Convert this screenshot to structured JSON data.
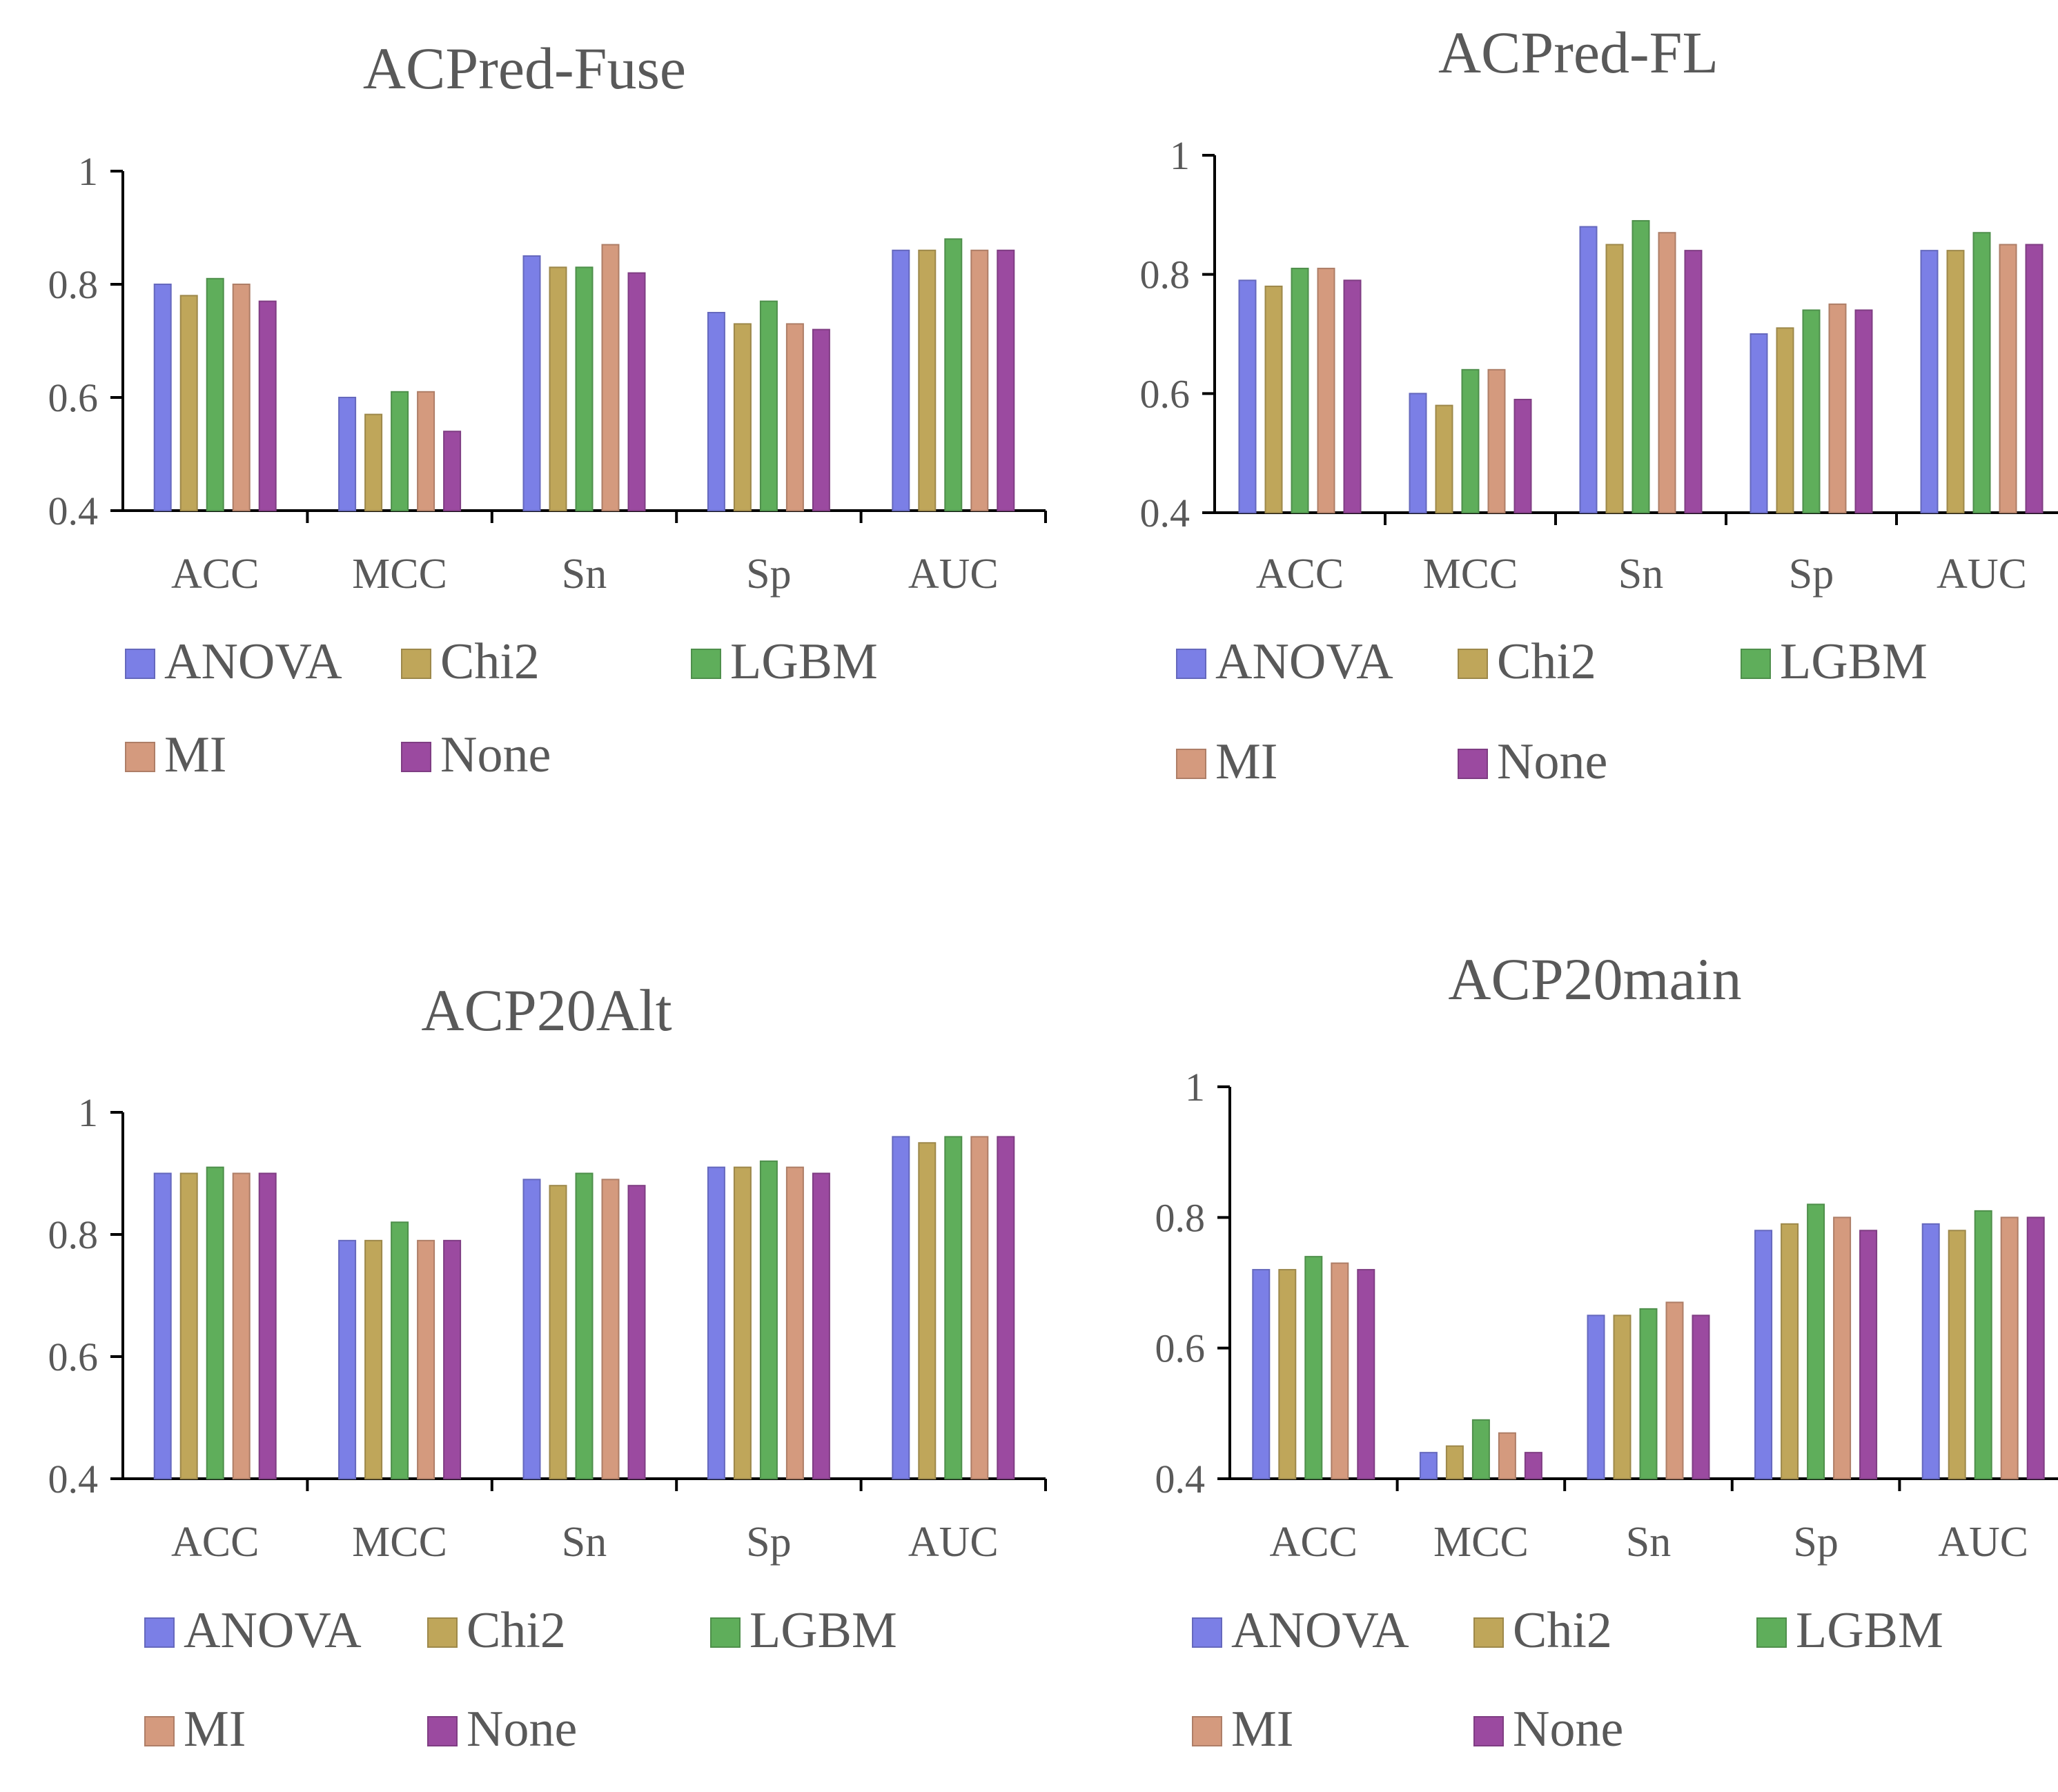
{
  "chart_data": [
    {
      "type": "bar",
      "title": "ACPred-Fuse",
      "categories": [
        "ACC",
        "MCC",
        "Sn",
        "Sp",
        "AUC"
      ],
      "ylim": [
        0.4,
        1
      ],
      "yticks": [
        "0.4",
        "0.6",
        "0.8",
        "1"
      ],
      "legend_position": "bottom",
      "series": [
        {
          "name": "ANOVA",
          "values": [
            0.8,
            0.6,
            0.85,
            0.75,
            0.86
          ]
        },
        {
          "name": "Chi2",
          "values": [
            0.78,
            0.57,
            0.83,
            0.73,
            0.86
          ]
        },
        {
          "name": "LGBM",
          "values": [
            0.81,
            0.61,
            0.83,
            0.77,
            0.88
          ]
        },
        {
          "name": "MI",
          "values": [
            0.8,
            0.61,
            0.87,
            0.73,
            0.86
          ]
        },
        {
          "name": "None",
          "values": [
            0.77,
            0.54,
            0.82,
            0.72,
            0.86
          ]
        }
      ]
    },
    {
      "type": "bar",
      "title": "ACPred-FL",
      "categories": [
        "ACC",
        "MCC",
        "Sn",
        "Sp",
        "AUC"
      ],
      "ylim": [
        0.4,
        1
      ],
      "yticks": [
        "0.4",
        "0.6",
        "0.8",
        "1"
      ],
      "legend_position": "bottom",
      "series": [
        {
          "name": "ANOVA",
          "values": [
            0.79,
            0.6,
            0.88,
            0.7,
            0.84
          ]
        },
        {
          "name": "Chi2",
          "values": [
            0.78,
            0.58,
            0.85,
            0.71,
            0.84
          ]
        },
        {
          "name": "LGBM",
          "values": [
            0.81,
            0.64,
            0.89,
            0.74,
            0.87
          ]
        },
        {
          "name": "MI",
          "values": [
            0.81,
            0.64,
            0.87,
            0.75,
            0.85
          ]
        },
        {
          "name": "None",
          "values": [
            0.79,
            0.59,
            0.84,
            0.74,
            0.85
          ]
        }
      ]
    },
    {
      "type": "bar",
      "title": "ACP20Alt",
      "categories": [
        "ACC",
        "MCC",
        "Sn",
        "Sp",
        "AUC"
      ],
      "ylim": [
        0.4,
        1
      ],
      "yticks": [
        "0.4",
        "0.6",
        "0.8",
        "1"
      ],
      "legend_position": "bottom",
      "series": [
        {
          "name": "ANOVA",
          "values": [
            0.9,
            0.79,
            0.89,
            0.91,
            0.96
          ]
        },
        {
          "name": "Chi2",
          "values": [
            0.9,
            0.79,
            0.88,
            0.91,
            0.95
          ]
        },
        {
          "name": "LGBM",
          "values": [
            0.91,
            0.82,
            0.9,
            0.92,
            0.96
          ]
        },
        {
          "name": "MI",
          "values": [
            0.9,
            0.79,
            0.89,
            0.91,
            0.96
          ]
        },
        {
          "name": "None",
          "values": [
            0.9,
            0.79,
            0.88,
            0.9,
            0.96
          ]
        }
      ]
    },
    {
      "type": "bar",
      "title": "ACP20main",
      "categories": [
        "ACC",
        "MCC",
        "Sn",
        "Sp",
        "AUC"
      ],
      "ylim": [
        0.4,
        1
      ],
      "yticks": [
        "0.4",
        "0.6",
        "0.8",
        "1"
      ],
      "legend_position": "bottom",
      "series": [
        {
          "name": "ANOVA",
          "values": [
            0.72,
            0.44,
            0.65,
            0.78,
            0.79
          ]
        },
        {
          "name": "Chi2",
          "values": [
            0.72,
            0.45,
            0.65,
            0.79,
            0.78
          ]
        },
        {
          "name": "LGBM",
          "values": [
            0.74,
            0.49,
            0.66,
            0.82,
            0.81
          ]
        },
        {
          "name": "MI",
          "values": [
            0.73,
            0.47,
            0.67,
            0.8,
            0.8
          ]
        },
        {
          "name": "None",
          "values": [
            0.72,
            0.44,
            0.65,
            0.78,
            0.8
          ]
        }
      ]
    }
  ],
  "colors": {
    "ANOVA": "#7b7fe6",
    "Chi2": "#bfa65a",
    "LGBM": "#5fae5b",
    "MI": "#d49a7e",
    "None": "#9b4aa0",
    "axis": "#000000",
    "text": "#595959"
  }
}
